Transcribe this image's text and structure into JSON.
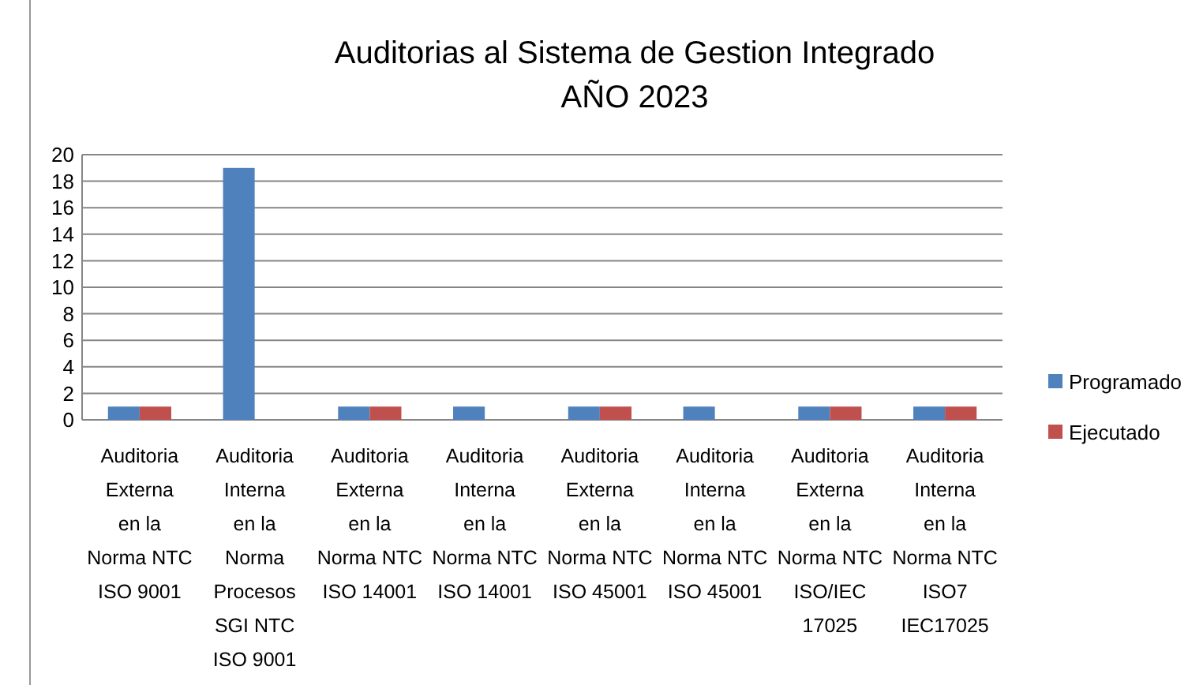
{
  "chart_data": {
    "type": "bar",
    "title": "Auditorias  al Sistema de Gestion Integrado\nAÑO  2023",
    "categories": [
      "Auditoria Externa en la Norma NTC ISO 9001",
      "Auditoria Interna en la Norma Procesos SGI  NTC ISO 9001",
      "Auditoria Externa en la Norma NTC ISO 14001",
      "Auditoria Interna en la Norma NTC ISO 14001",
      "Auditoria Externa en la Norma NTC ISO 45001",
      "Auditoria Interna en la Norma NTC ISO 45001",
      "Auditoria Externa en la Norma NTC ISO/IEC 17025",
      "Auditoria Interna en la Norma NTC ISO7 IEC17025"
    ],
    "series": [
      {
        "name": "Programado",
        "color": "#4f81bd",
        "values": [
          1,
          19,
          1,
          1,
          1,
          1,
          1,
          1
        ]
      },
      {
        "name": "Ejecutado",
        "color": "#c0504d",
        "values": [
          1,
          0,
          1,
          0,
          1,
          0,
          1,
          1
        ]
      }
    ],
    "ylim": [
      0,
      20
    ],
    "yticks": [
      0,
      2,
      4,
      6,
      8,
      10,
      12,
      14,
      16,
      18,
      20
    ],
    "grid": "y",
    "legend": "right"
  }
}
